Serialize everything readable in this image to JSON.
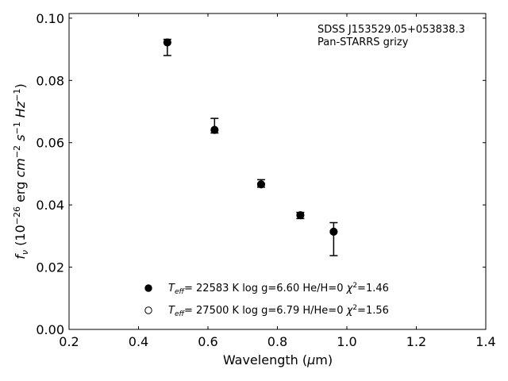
{
  "chart_data": {
    "type": "scatter",
    "annotations": [
      "SDSS J153529.05+053838.3",
      "Pan-STARRS grizy"
    ],
    "xlabel": "Wavelength (μm)",
    "xlabel_parts": {
      "pre": "Wavelength (",
      "mu": "μ",
      "post": "m)"
    },
    "ylabel": "f_ν (10^-26 erg cm^-2 s^-1 Hz^-1)",
    "xlim": [
      0.2,
      1.4
    ],
    "ylim": [
      0.0,
      0.1015
    ],
    "xticks": [
      "0.2",
      "0.4",
      "0.6",
      "0.8",
      "1.0",
      "1.2",
      "1.4"
    ],
    "yticks": [
      "0.00",
      "0.02",
      "0.04",
      "0.06",
      "0.08",
      "0.10"
    ],
    "grid": false,
    "legend_position": "lower-center",
    "series": [
      {
        "name": "T_eff= 22583 K  log g=6.60  He/H=0  χ²=1.46",
        "marker": "filled-circle",
        "x": [
          0.483,
          0.619,
          0.753,
          0.866,
          0.962
        ],
        "y": [
          0.0922,
          0.0641,
          0.0466,
          0.0367,
          0.0314
        ]
      },
      {
        "name": "T_eff= 27500 K  log g=6.79  H/He=0  χ²=1.56",
        "marker": "open-circle",
        "x": [
          0.483,
          0.619,
          0.753,
          0.866,
          0.962
        ],
        "y": [
          0.0922,
          0.0641,
          0.0466,
          0.0367,
          0.0314
        ]
      }
    ],
    "observed": {
      "x": [
        0.483,
        0.619,
        0.753,
        0.866,
        0.962
      ],
      "y": [
        0.092,
        0.0641,
        0.0469,
        0.0368,
        0.0315
      ],
      "yerr_low": [
        0.004,
        0.001,
        0.0012,
        0.0012,
        0.0078
      ],
      "yerr_high": [
        0.0012,
        0.0037,
        0.0012,
        0.0008,
        0.0028
      ]
    },
    "legend": [
      {
        "marker": "filled-circle",
        "teff": "22583 K",
        "logg": "log g=6.60",
        "comp": "He/H=0",
        "chi2": "=1.46"
      },
      {
        "marker": "open-circle",
        "teff": "27500 K",
        "logg": "log g=6.79",
        "comp": "H/He=0",
        "chi2": "=1.56"
      }
    ]
  }
}
